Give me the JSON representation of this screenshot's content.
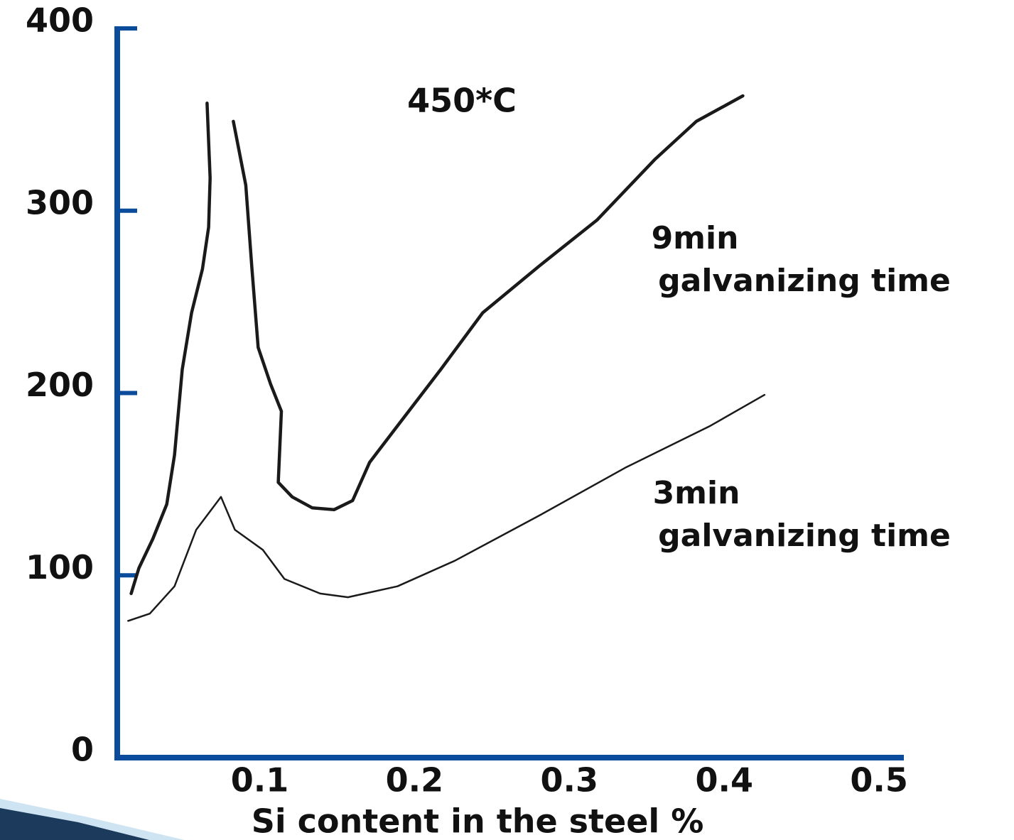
{
  "chart_data": {
    "type": "line",
    "xlabel": "Si content in the steel %",
    "annotations": [
      "450*C",
      "9min",
      "galvanizing time",
      "3min",
      "galvanizing time"
    ],
    "xlim": [
      0.008,
      0.516
    ],
    "xticks": [
      0.1,
      0.2,
      0.3,
      0.4,
      0.5
    ],
    "ylim": [
      0,
      400
    ],
    "yticks": [
      0,
      100,
      200,
      300,
      400
    ],
    "axis_color": "#0a4b9c",
    "grid": false,
    "series": [
      {
        "color": "#1a1a1a",
        "x": [
          0.017,
          0.022,
          0.031,
          0.04,
          0.045,
          0.05,
          0.056,
          0.063,
          0.067,
          0.068,
          0.066,
          null,
          0.083,
          0.091,
          0.095,
          0.099,
          0.107,
          0.114,
          0.112,
          0.121,
          0.134,
          0.148,
          0.16,
          0.171,
          0.189,
          0.217,
          0.244,
          0.281,
          0.318,
          0.355,
          0.382,
          0.412
        ],
        "values": [
          90,
          104,
          120,
          139,
          166,
          213,
          244,
          268,
          291,
          318,
          359,
          null,
          349,
          314,
          268,
          225,
          205,
          190,
          151,
          143,
          137,
          136,
          141,
          162,
          182,
          213,
          244,
          270,
          295,
          328,
          349,
          363
        ]
      },
      {
        "color": "#1a1a1a",
        "x": [
          0.015,
          0.029,
          0.045,
          0.059,
          0.075,
          0.084,
          0.102,
          0.116,
          0.139,
          0.157,
          0.189,
          0.226,
          0.281,
          0.336,
          0.391,
          0.426
        ],
        "values": [
          75,
          79,
          94,
          125,
          143,
          125,
          114,
          98,
          90,
          88,
          94,
          108,
          133,
          159,
          182,
          199
        ]
      }
    ]
  }
}
